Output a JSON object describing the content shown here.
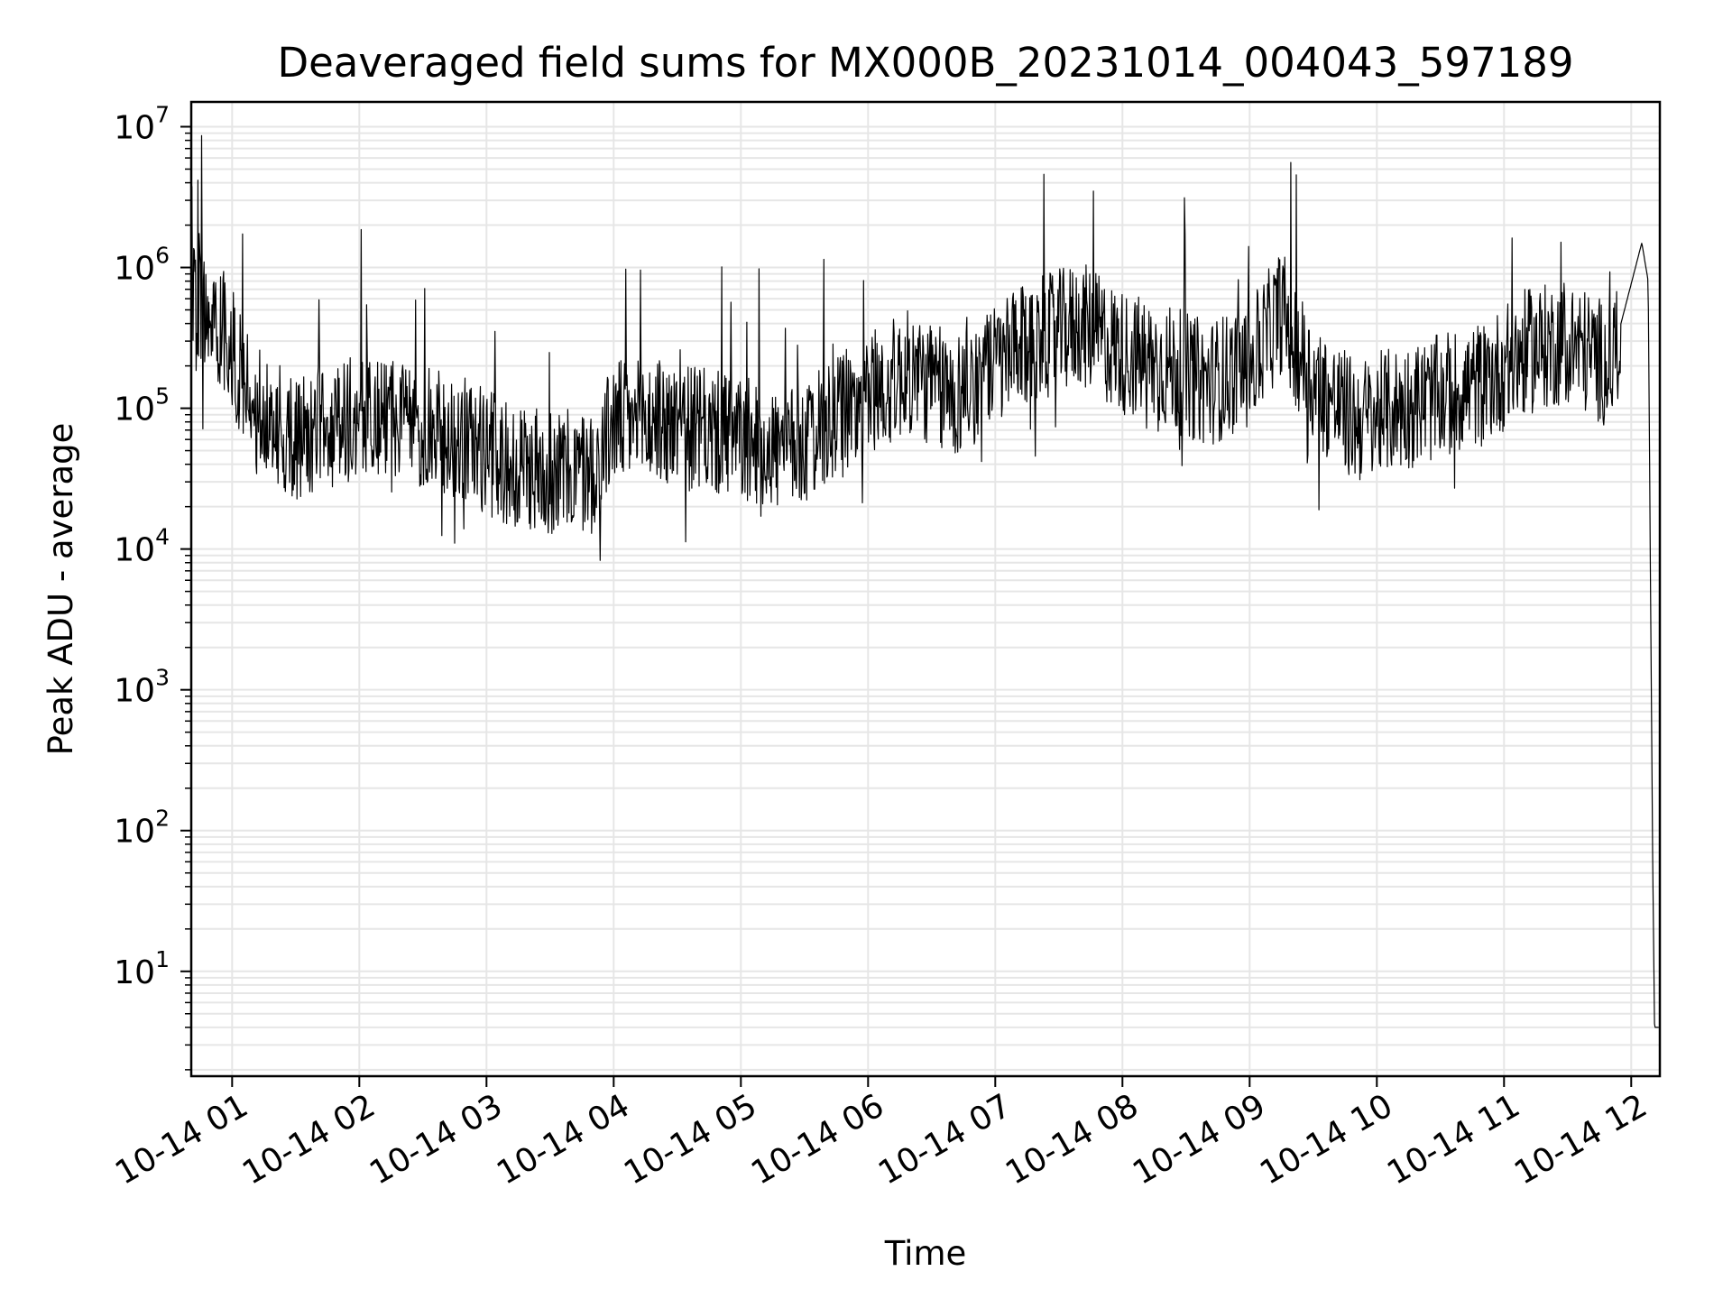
{
  "chart_data": {
    "type": "line",
    "title": "Deaveraged field sums for MX000B_20231014_004043_597189",
    "xlabel": "Time",
    "ylabel": "Peak ADU - average",
    "yscale": "log",
    "ylim": [
      1.8,
      15000000
    ],
    "xlim": [
      "10-14 00:40:43",
      "10-14 12:13:30"
    ],
    "grid": true,
    "line_color": "#000000",
    "grid_color": "#e6e6e6",
    "x_ticks": [
      {
        "label": "10-14 01",
        "hour": 1
      },
      {
        "label": "10-14 02",
        "hour": 2
      },
      {
        "label": "10-14 03",
        "hour": 3
      },
      {
        "label": "10-14 04",
        "hour": 4
      },
      {
        "label": "10-14 05",
        "hour": 5
      },
      {
        "label": "10-14 06",
        "hour": 6
      },
      {
        "label": "10-14 07",
        "hour": 7
      },
      {
        "label": "10-14 08",
        "hour": 8
      },
      {
        "label": "10-14 09",
        "hour": 9
      },
      {
        "label": "10-14 10",
        "hour": 10
      },
      {
        "label": "10-14 11",
        "hour": 11
      },
      {
        "label": "10-14 12",
        "hour": 12
      }
    ],
    "y_ticks": [
      {
        "base": "10",
        "exp": "1",
        "value": 10
      },
      {
        "base": "10",
        "exp": "2",
        "value": 100
      },
      {
        "base": "10",
        "exp": "3",
        "value": 1000
      },
      {
        "base": "10",
        "exp": "4",
        "value": 10000
      },
      {
        "base": "10",
        "exp": "5",
        "value": 100000
      },
      {
        "base": "10",
        "exp": "6",
        "value": 1000000
      },
      {
        "base": "10",
        "exp": "7",
        "value": 10000000
      }
    ],
    "series": [
      {
        "x": [
          "10-14 00:41",
          "10-14 00:50",
          "10-14 00:55",
          "10-14 01:00",
          "10-14 01:10",
          "10-14 01:30",
          "10-14 01:50",
          "10-14 02:05",
          "10-14 02:30",
          "10-14 02:50",
          "10-14 03:10",
          "10-14 03:30",
          "10-14 03:50",
          "10-14 04:00",
          "10-14 04:20",
          "10-14 04:40",
          "10-14 05:00",
          "10-14 05:20",
          "10-14 05:40",
          "10-14 06:00",
          "10-14 06:20",
          "10-14 06:40",
          "10-14 07:00",
          "10-14 07:20",
          "10-14 07:40",
          "10-14 08:00",
          "10-14 08:20",
          "10-14 08:40",
          "10-14 09:00",
          "10-14 09:15",
          "10-14 09:30",
          "10-14 09:50",
          "10-14 10:10",
          "10-14 10:30",
          "10-14 10:50",
          "10-14 11:10",
          "10-14 11:30",
          "10-14 11:50",
          "10-14 12:05",
          "10-14 12:08",
          "10-14 12:10",
          "10-14 12:11",
          "10-14 12:13"
        ],
        "y": [
          500000,
          450000,
          400000,
          250000,
          100000,
          60000,
          80000,
          90000,
          70000,
          60000,
          40000,
          35000,
          35000,
          80000,
          80000,
          70000,
          60000,
          50000,
          70000,
          130000,
          180000,
          120000,
          200000,
          300000,
          400000,
          250000,
          200000,
          150000,
          200000,
          500000,
          150000,
          80000,
          100000,
          120000,
          150000,
          250000,
          300000,
          200000,
          1500000,
          800000,
          100,
          4,
          4
        ]
      }
    ]
  }
}
